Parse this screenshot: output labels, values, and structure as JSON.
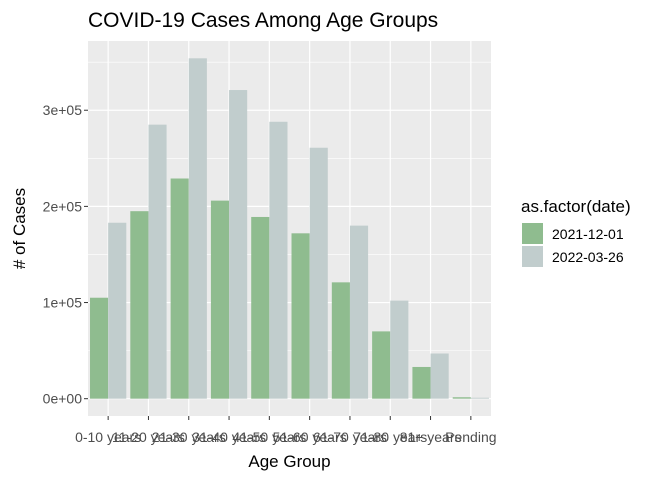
{
  "chart_data": {
    "type": "bar",
    "title": "COVID-19 Cases Among  Age Groups",
    "xlabel": "Age Group",
    "ylabel": "# of Cases",
    "categories": [
      "0-10 years",
      "11-20 years",
      "21-30 years",
      "31-40 years",
      "41-50 years",
      "51-60 years",
      "61-70 years",
      "71-80 years",
      "81+ years",
      "Pending"
    ],
    "series": [
      {
        "name": "2021-12-01",
        "color": "#8fbc8f",
        "values": [
          105000,
          195000,
          229000,
          206000,
          189000,
          172000,
          121000,
          70000,
          33000,
          1500
        ]
      },
      {
        "name": "2022-03-26",
        "color": "#c1cdcd",
        "values": [
          183000,
          285000,
          354000,
          321000,
          288000,
          261000,
          180000,
          102000,
          47000,
          1000
        ]
      }
    ],
    "ylim": [
      -18000,
      372000
    ],
    "yticks": [
      0,
      100000,
      200000,
      300000
    ],
    "ytick_labels": [
      "0e+00",
      "1e+05",
      "2e+05",
      "3e+05"
    ],
    "legend": {
      "title": "as.factor(date)",
      "placement": "right"
    },
    "grid": true,
    "panel_background": "#ebebeb"
  }
}
